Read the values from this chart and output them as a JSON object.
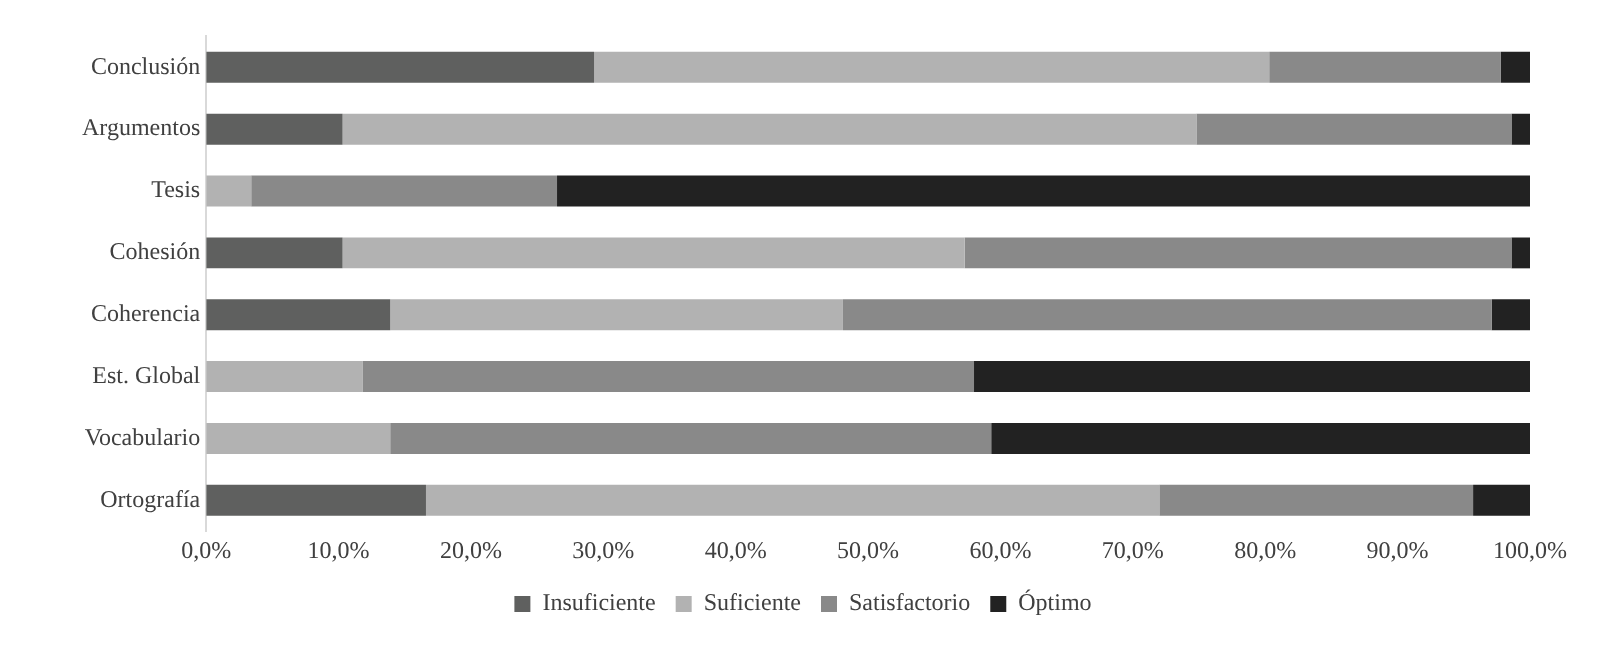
{
  "chart_data": {
    "type": "bar",
    "orientation": "horizontal",
    "stacked": true,
    "categories": [
      "Conclusión",
      "Argumentos",
      "Tesis",
      "Cohesión",
      "Coherencia",
      "Est. Global",
      "Vocabulario",
      "Ortografía"
    ],
    "series": [
      {
        "name": "Insuficiente",
        "color": "#5f605f",
        "values": [
          29.3,
          10.3,
          0,
          10.3,
          13.9,
          0,
          0,
          16.6
        ]
      },
      {
        "name": "Suficiente",
        "color": "#b2b2b2",
        "values": [
          51.0,
          64.5,
          3.4,
          47.0,
          34.2,
          11.8,
          13.9,
          55.4
        ]
      },
      {
        "name": "Satisfactorio",
        "color": "#898989",
        "values": [
          17.5,
          23.8,
          23.1,
          41.3,
          49.0,
          46.2,
          45.4,
          23.7
        ]
      },
      {
        "name": "Óptimo",
        "color": "#222222",
        "values": [
          2.2,
          1.4,
          73.5,
          1.4,
          2.9,
          42.0,
          40.7,
          4.3
        ]
      }
    ],
    "xlim": [
      0,
      100
    ],
    "xticks": [
      {
        "value": 0,
        "label": "0,0%"
      },
      {
        "value": 10,
        "label": "10,0%"
      },
      {
        "value": 20,
        "label": "20,0%"
      },
      {
        "value": 30,
        "label": "30,0%"
      },
      {
        "value": 40,
        "label": "40,0%"
      },
      {
        "value": 50,
        "label": "50,0%"
      },
      {
        "value": 60,
        "label": "60,0%"
      },
      {
        "value": 70,
        "label": "70,0%"
      },
      {
        "value": 80,
        "label": "80,0%"
      },
      {
        "value": 90,
        "label": "90,0%"
      },
      {
        "value": 100,
        "label": "100,0%"
      }
    ],
    "grid": false,
    "legend": "bottom"
  }
}
